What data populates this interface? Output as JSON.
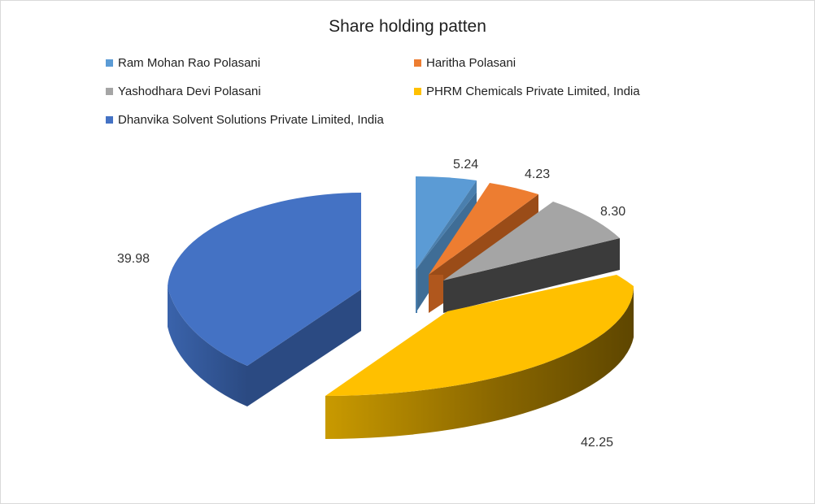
{
  "chart_data": {
    "type": "pie",
    "title": "Share holding patten",
    "legend_position": "top-left",
    "series": [
      {
        "name": "Ram Mohan Rao Polasani",
        "value": 5.24,
        "color": "#5b9bd5"
      },
      {
        "name": "Haritha Polasani",
        "value": 4.23,
        "color": "#ed7d31"
      },
      {
        "name": "Yashodhara Devi Polasani",
        "value": 8.3,
        "color": "#a5a5a5"
      },
      {
        "name": "PHRM Chemicals Private Limited, India",
        "value": 42.25,
        "color": "#ffc000"
      },
      {
        "name": "Dhanvika Solvent Solutions Private Limited, India",
        "value": 39.98,
        "color": "#4472c4"
      }
    ],
    "data_labels": [
      "5.24",
      "4.23",
      "8.30",
      "42.25",
      "39.98"
    ]
  }
}
